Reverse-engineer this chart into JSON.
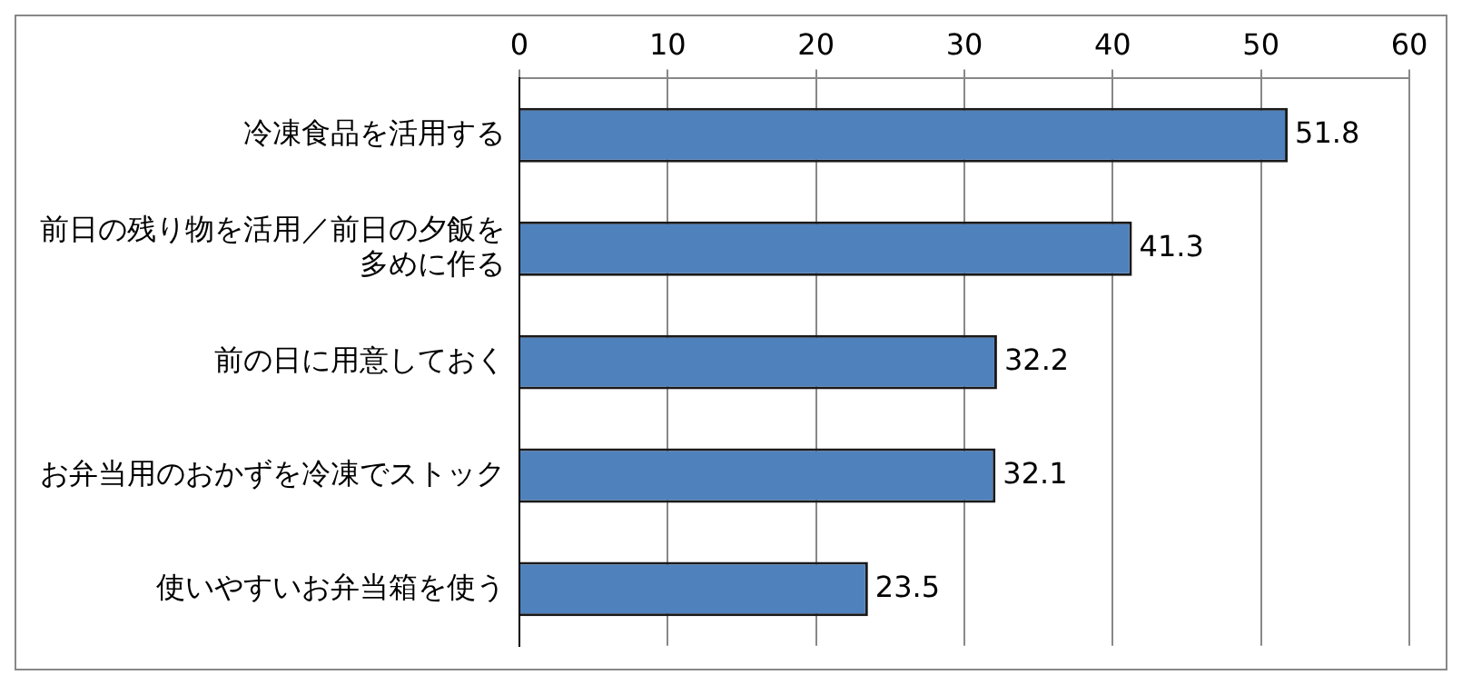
{
  "chart_data": {
    "type": "bar",
    "orientation": "horizontal",
    "categories": [
      "冷凍食品を活用する",
      "前日の残り物を活用／前日の夕飯を多めに作る",
      "前の日に用意しておく",
      "お弁当用のおかずを冷凍でストック",
      "使いやすいお弁当箱を使う"
    ],
    "values": [
      51.8,
      41.3,
      32.2,
      32.1,
      23.5
    ],
    "color": "#4f81bd",
    "xlim": [
      0,
      60
    ],
    "xticks": [
      0,
      10,
      20,
      30,
      40,
      50,
      60
    ],
    "grid": "x",
    "data_labels": true,
    "legend": false
  }
}
